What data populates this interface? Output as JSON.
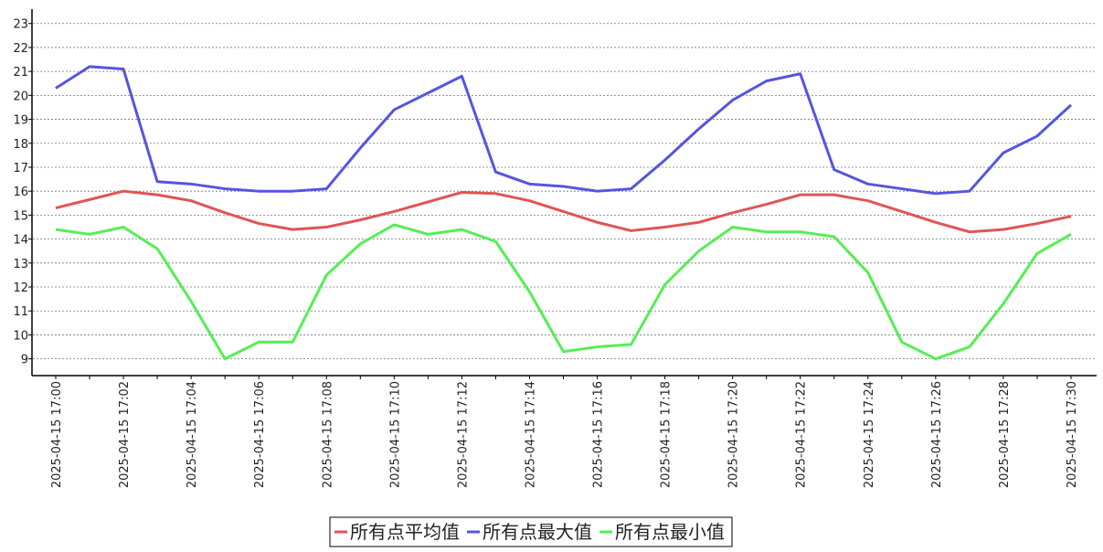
{
  "chart_data": {
    "type": "line",
    "categories": [
      "2025-04-15 17:00",
      null,
      "2025-04-15 17:02",
      null,
      "2025-04-15 17:04",
      null,
      "2025-04-15 17:06",
      null,
      "2025-04-15 17:08",
      null,
      "2025-04-15 17:10",
      null,
      "2025-04-15 17:12",
      null,
      "2025-04-15 17:14",
      null,
      "2025-04-15 17:16",
      null,
      "2025-04-15 17:18",
      null,
      "2025-04-15 17:20",
      null,
      "2025-04-15 17:22",
      null,
      "2025-04-15 17:24",
      null,
      "2025-04-15 17:26",
      null,
      "2025-04-15 17:28",
      null,
      "2025-04-15 17:30"
    ],
    "series": [
      {
        "name": "所有点平均值",
        "color": "#e05555",
        "values": [
          15.3,
          15.65,
          16.0,
          15.85,
          15.6,
          15.1,
          14.65,
          14.4,
          14.5,
          14.8,
          15.15,
          15.55,
          15.95,
          15.9,
          15.6,
          15.15,
          14.7,
          14.35,
          14.5,
          14.7,
          15.1,
          15.45,
          15.85,
          15.85,
          15.6,
          15.15,
          14.7,
          14.3,
          14.4,
          14.65,
          14.95
        ]
      },
      {
        "name": "所有点最大值",
        "color": "#5555e0",
        "values": [
          20.3,
          21.2,
          21.1,
          16.4,
          16.3,
          16.1,
          16.0,
          16.0,
          16.1,
          17.8,
          19.4,
          20.1,
          20.8,
          16.8,
          16.3,
          16.2,
          16.0,
          16.1,
          17.3,
          18.6,
          19.8,
          20.6,
          20.9,
          16.9,
          16.3,
          16.1,
          15.9,
          16.0,
          17.6,
          18.3,
          19.6
        ]
      },
      {
        "name": "所有点最小值",
        "color": "#55ee55",
        "values": [
          14.4,
          14.2,
          14.5,
          13.6,
          11.4,
          9.0,
          9.7,
          9.7,
          12.5,
          13.8,
          14.6,
          14.2,
          14.4,
          13.9,
          11.8,
          9.3,
          9.5,
          9.6,
          12.1,
          13.5,
          14.5,
          14.3,
          14.3,
          14.1,
          12.6,
          9.7,
          9.0,
          9.5,
          11.3,
          13.4,
          14.2
        ]
      }
    ],
    "ylim": [
      8.3,
      23.6
    ],
    "yticks": [
      9,
      10,
      11,
      12,
      13,
      14,
      15,
      16,
      17,
      18,
      19,
      20,
      21,
      22,
      23
    ],
    "grid": true,
    "legend": "bottom"
  }
}
